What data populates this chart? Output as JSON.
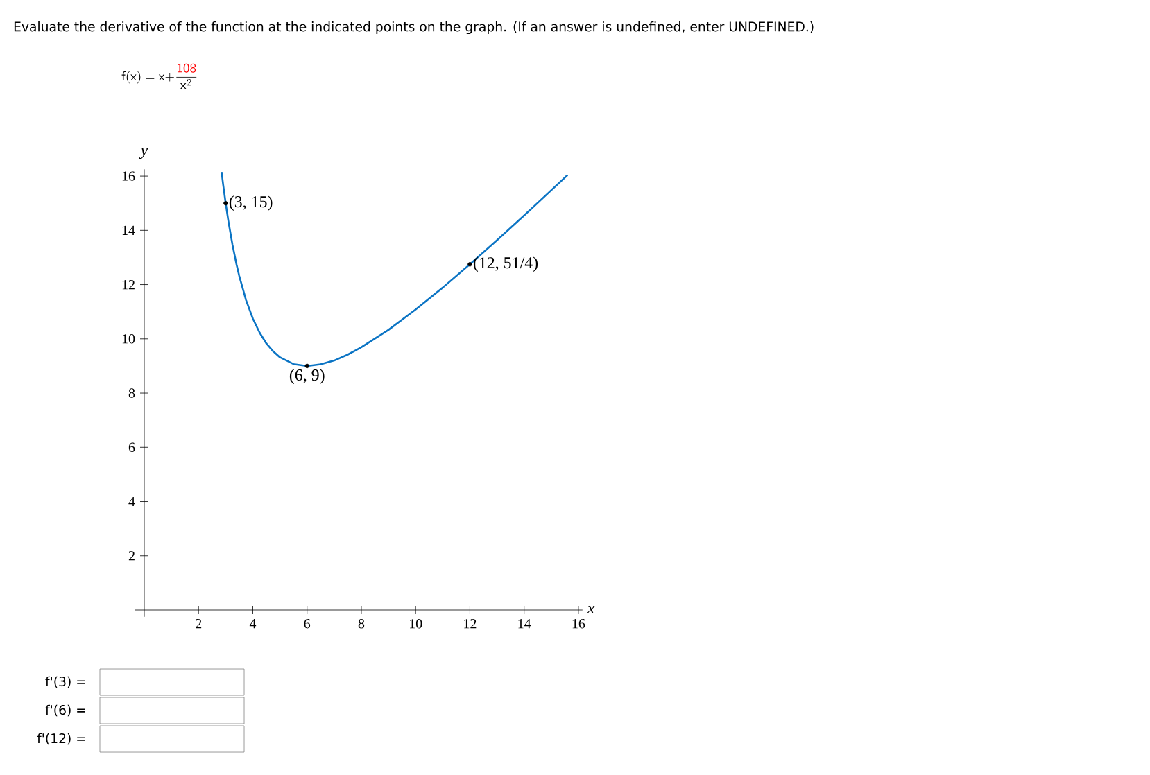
{
  "chart_data": {
    "type": "line",
    "title": "Evaluate the derivative of the function at the indicated points on the graph. (If an answer is undefined, enter UNDEFINED.)",
    "subtitle": "\\mathsf{f(x) = x +} \\frac{\\textcolor{red}{\\mathsf{108}}}{\\mathsf{x}^{2}}",
    "xlabel": "x",
    "ylabel": "y",
    "xlim": [
      -0.35,
      16.15
    ],
    "ylim": [
      -0.25,
      16.25
    ],
    "xticks": [
      2,
      4,
      6,
      8,
      10,
      12,
      14,
      16
    ],
    "yticks": [
      2,
      4,
      6,
      8,
      10,
      12,
      14,
      16
    ],
    "series": [
      {
        "color": "#0b74c4",
        "marker": "none",
        "x": [
          2.85,
          2.9,
          3,
          3.1,
          3.25,
          3.4,
          3.5,
          3.75,
          4,
          4.25,
          4.5,
          4.75,
          5,
          5.5,
          6,
          6.5,
          7,
          7.5,
          8,
          9,
          10,
          11,
          12,
          13,
          14,
          15,
          15.6
        ],
        "values": [
          16.15,
          15.74,
          15,
          14.34,
          13.47,
          12.74,
          12.32,
          11.43,
          10.75,
          10.23,
          9.83,
          9.54,
          9.32,
          9.07,
          9,
          9.06,
          9.2,
          9.42,
          9.69,
          10.33,
          11.08,
          11.89,
          12.75,
          13.64,
          14.55,
          15.48,
          16.04
        ]
      },
      {
        "type": "scatter",
        "color": "#000000",
        "marker": "circle",
        "x": [
          3,
          6,
          12
        ],
        "values": [
          15,
          9,
          12.75
        ]
      }
    ],
    "annotations": [
      {
        "text": "(3, 15)",
        "x": 3,
        "y": 15
      },
      {
        "text": "(6, 9)",
        "x": 6,
        "y": 9
      },
      {
        "text": "(12, 51/4)",
        "x": 12,
        "y": 12.75
      },
      "f'(3) =",
      "f'(6) =",
      "f'(12) ="
    ]
  }
}
